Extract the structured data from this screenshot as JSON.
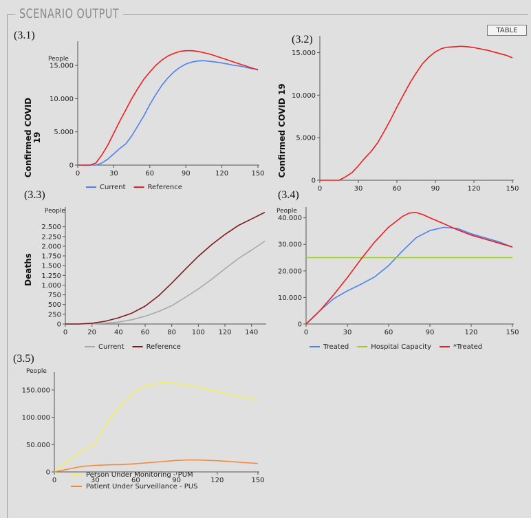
{
  "panel": {
    "title": "SCENARIO OUTPUT",
    "table_button": "TABLE"
  },
  "colors": {
    "blue": "#4d7ff0",
    "red": "#f01d1d",
    "gray": "#a8a8a8",
    "darkred": "#7d1a1a",
    "green": "#9ccd2b",
    "yellow": "#f3f05a",
    "orange": "#f5883a"
  },
  "chart_data": [
    {
      "id": "3.1",
      "label": "(3.1)",
      "type": "line",
      "ylabel": "Confirmed COVID 19",
      "unit": "People",
      "xlim": [
        0,
        150
      ],
      "ylim": [
        0,
        18000
      ],
      "xticks": [
        0,
        30,
        60,
        90,
        120,
        150
      ],
      "xtick_labels": [
        "0",
        "30",
        "60",
        "90",
        "120",
        "150"
      ],
      "yticks": [
        0,
        5000,
        10000,
        15000
      ],
      "ytick_labels": [
        "0",
        "5.000",
        "10.000",
        "15.000"
      ],
      "series": [
        {
          "name": "Current",
          "color": "#4d7ff0",
          "x": [
            0,
            10,
            15,
            20,
            25,
            30,
            35,
            40,
            45,
            50,
            55,
            60,
            65,
            70,
            75,
            80,
            85,
            90,
            95,
            100,
            105,
            110,
            115,
            120,
            125,
            130,
            135,
            140,
            145,
            150
          ],
          "y": [
            0,
            0,
            0,
            300,
            900,
            1700,
            2500,
            3200,
            4400,
            5900,
            7400,
            9100,
            10600,
            12000,
            13100,
            14000,
            14700,
            15200,
            15500,
            15650,
            15700,
            15600,
            15500,
            15350,
            15200,
            15000,
            14900,
            14700,
            14500,
            14400
          ]
        },
        {
          "name": "Reference",
          "color": "#f01d1d",
          "x": [
            0,
            10,
            15,
            20,
            25,
            30,
            35,
            40,
            45,
            50,
            55,
            60,
            65,
            70,
            75,
            80,
            85,
            90,
            95,
            100,
            105,
            110,
            115,
            120,
            125,
            130,
            135,
            140,
            145,
            150
          ],
          "y": [
            0,
            0,
            300,
            1500,
            3000,
            4800,
            6600,
            8300,
            10000,
            11500,
            12900,
            14000,
            15000,
            15800,
            16400,
            16800,
            17100,
            17200,
            17200,
            17100,
            16900,
            16700,
            16400,
            16100,
            15800,
            15500,
            15200,
            14900,
            14600,
            14300
          ]
        }
      ]
    },
    {
      "id": "3.2",
      "label": "(3.2)",
      "type": "line",
      "ylabel": "Confirmed COVID 19",
      "unit": "",
      "xlim": [
        0,
        150
      ],
      "ylim": [
        0,
        16500
      ],
      "xticks": [
        0,
        30,
        60,
        90,
        120,
        150
      ],
      "xtick_labels": [
        "0",
        "30",
        "60",
        "90",
        "120",
        "150"
      ],
      "yticks": [
        0,
        5000,
        10000,
        15000
      ],
      "ytick_labels": [
        "0",
        "5.000",
        "10.000",
        "15.000"
      ],
      "series": [
        {
          "name": "",
          "color": "#f01d1d",
          "x": [
            0,
            10,
            15,
            20,
            25,
            30,
            35,
            40,
            45,
            50,
            55,
            60,
            65,
            70,
            75,
            80,
            85,
            90,
            95,
            100,
            105,
            110,
            115,
            120,
            125,
            130,
            135,
            140,
            145,
            150
          ],
          "y": [
            0,
            0,
            0,
            400,
            900,
            1700,
            2600,
            3400,
            4400,
            5700,
            7100,
            8600,
            10000,
            11400,
            12600,
            13700,
            14500,
            15100,
            15500,
            15650,
            15700,
            15750,
            15700,
            15600,
            15450,
            15300,
            15100,
            14900,
            14700,
            14400
          ]
        }
      ]
    },
    {
      "id": "3.3",
      "label": "(3.3)",
      "type": "line",
      "ylabel": "Deaths",
      "unit": "People",
      "xlim": [
        0,
        150
      ],
      "ylim": [
        0,
        2900
      ],
      "xticks": [
        0,
        20,
        40,
        60,
        80,
        100,
        120,
        140
      ],
      "xtick_labels": [
        "0",
        "20",
        "40",
        "60",
        "80",
        "100",
        "120",
        "140"
      ],
      "yticks": [
        0,
        250,
        500,
        750,
        1000,
        1250,
        1500,
        1750,
        2000,
        2250,
        2500
      ],
      "ytick_labels": [
        "0",
        "250",
        "500",
        "750",
        "1.000",
        "1.250",
        "1.500",
        "1.750",
        "2.000",
        "2.250",
        "2.500"
      ],
      "series": [
        {
          "name": "Current",
          "color": "#a8a8a8",
          "x": [
            0,
            10,
            20,
            30,
            40,
            50,
            60,
            70,
            80,
            90,
            100,
            110,
            120,
            130,
            140,
            150
          ],
          "y": [
            0,
            0,
            5,
            20,
            50,
            110,
            200,
            320,
            470,
            680,
            900,
            1150,
            1420,
            1680,
            1900,
            2130
          ]
        },
        {
          "name": "Reference",
          "color": "#7d1a1a",
          "x": [
            0,
            10,
            20,
            30,
            40,
            50,
            60,
            70,
            80,
            90,
            100,
            110,
            120,
            130,
            140,
            150
          ],
          "y": [
            0,
            0,
            20,
            70,
            160,
            280,
            460,
            720,
            1050,
            1400,
            1740,
            2040,
            2300,
            2530,
            2700,
            2870
          ]
        }
      ]
    },
    {
      "id": "3.4",
      "label": "(3.4)",
      "type": "line",
      "ylabel": "",
      "unit": "People",
      "xlim": [
        0,
        150
      ],
      "ylim": [
        0,
        42500
      ],
      "xticks": [
        0,
        30,
        60,
        90,
        120,
        150
      ],
      "xtick_labels": [
        "0",
        "30",
        "60",
        "90",
        "120",
        "150"
      ],
      "yticks": [
        0,
        10000,
        20000,
        30000,
        40000
      ],
      "ytick_labels": [
        "0",
        "10.000",
        "20.000",
        "30.000",
        "40.000"
      ],
      "series": [
        {
          "name": "Treated",
          "color": "#4d7ff0",
          "x": [
            0,
            10,
            20,
            30,
            40,
            50,
            60,
            70,
            80,
            90,
            100,
            110,
            120,
            130,
            140,
            150
          ],
          "y": [
            0,
            5000,
            9500,
            12500,
            15000,
            17800,
            22000,
            27500,
            32500,
            35200,
            36400,
            36000,
            34000,
            32500,
            31000,
            29000
          ]
        },
        {
          "name": "Hospital Capacity",
          "color": "#9ccd2b",
          "x": [
            0,
            150
          ],
          "y": [
            25000,
            25000
          ]
        },
        {
          "name": "*Treated",
          "color": "#f01d1d",
          "x": [
            0,
            10,
            20,
            30,
            40,
            50,
            60,
            70,
            75,
            80,
            85,
            90,
            100,
            110,
            120,
            130,
            140,
            150
          ],
          "y": [
            0,
            5000,
            11000,
            17500,
            24500,
            31000,
            36500,
            40500,
            41800,
            42000,
            41200,
            40000,
            37800,
            35500,
            33500,
            32000,
            30500,
            29000
          ]
        }
      ]
    },
    {
      "id": "3.5",
      "label": "(3.5)",
      "type": "line",
      "ylabel": "",
      "unit": "People",
      "xlim": [
        0,
        150
      ],
      "ylim": [
        0,
        175000
      ],
      "xticks": [
        0,
        30,
        60,
        90,
        120,
        150
      ],
      "xtick_labels": [
        "0",
        "30",
        "60",
        "90",
        "120",
        "150"
      ],
      "yticks": [
        0,
        50000,
        100000,
        150000
      ],
      "ytick_labels": [
        "0",
        "50.000",
        "100.000",
        "150.000"
      ],
      "series": [
        {
          "name": "Person Under Monitoring - PUM",
          "color": "#f3f05a",
          "x": [
            0,
            10,
            20,
            30,
            40,
            50,
            60,
            70,
            80,
            90,
            100,
            110,
            120,
            130,
            140,
            150
          ],
          "y": [
            0,
            20000,
            38000,
            52000,
            95000,
            125000,
            148000,
            160000,
            163000,
            162000,
            158000,
            153000,
            147000,
            141000,
            136000,
            131000
          ]
        },
        {
          "name": "Patient Under Surveillance - PUS",
          "color": "#f5883a",
          "x": [
            0,
            10,
            20,
            30,
            40,
            50,
            60,
            70,
            80,
            90,
            100,
            110,
            120,
            130,
            140,
            150
          ],
          "y": [
            0,
            5000,
            10000,
            12000,
            13000,
            13500,
            15000,
            17000,
            19000,
            21000,
            22000,
            21500,
            20500,
            19000,
            17000,
            15500
          ]
        }
      ]
    }
  ]
}
